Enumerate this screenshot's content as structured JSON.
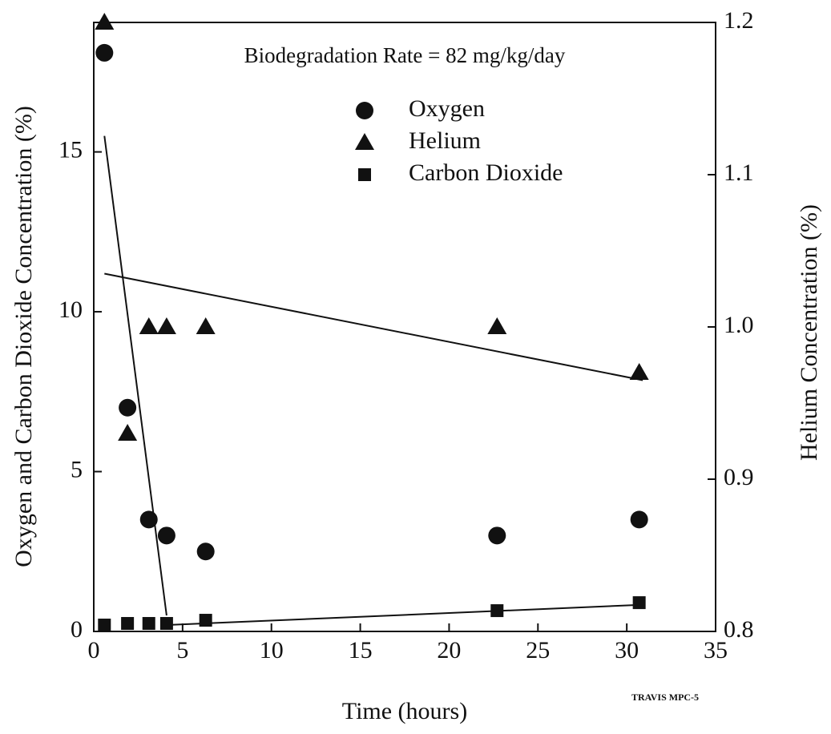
{
  "chart_data": {
    "type": "scatter",
    "annotations": [
      "Biodegradation Rate = 82 mg/kg/day",
      "TRAVIS MPC-5"
    ],
    "x_label": "Time (hours)",
    "y_label": "Oxygen and Carbon Dioxide Concentration (%)",
    "y2_label": "Helium Concentration (%)",
    "xlim": [
      0,
      35
    ],
    "xticks": [
      0,
      5,
      10,
      15,
      20,
      25,
      30,
      35
    ],
    "ylim": [
      0,
      19.05
    ],
    "yticks": [
      0,
      5,
      10,
      15
    ],
    "y2lim": [
      0.8,
      1.2
    ],
    "y2ticks": [
      0.8,
      0.9,
      {
        "value": 1,
        "label": "1.0"
      },
      1.1,
      1.2
    ],
    "series": [
      {
        "name": "Oxygen",
        "color": "#111111",
        "marker": "circle",
        "x": [
          0.6,
          1.9,
          3.1,
          4.1,
          6.3,
          22.7,
          30.7
        ],
        "values": [
          18.1,
          7.0,
          3.5,
          3.0,
          2.5,
          3.0,
          3.5
        ]
      },
      {
        "name": "Helium",
        "color": "#111111",
        "marker": "triangle",
        "axis": "y2",
        "x": [
          0.6,
          1.9,
          3.1,
          4.1,
          6.3,
          22.7,
          30.7
        ],
        "values": [
          1.2,
          0.93,
          1.0,
          1.0,
          1.0,
          1.0,
          0.97
        ]
      },
      {
        "name": "Carbon Dioxide",
        "color": "#111111",
        "marker": "square",
        "x": [
          0.6,
          1.9,
          3.1,
          4.1,
          6.3,
          22.7,
          30.7
        ],
        "values": [
          0.2,
          0.25,
          0.25,
          0.25,
          0.35,
          0.65,
          0.9
        ]
      }
    ],
    "fit_lines": [
      {
        "x": [
          0.6,
          4.1
        ],
        "values": [
          15.5,
          0.5
        ]
      },
      {
        "axis": "y2",
        "x": [
          0.6,
          30.9
        ],
        "values": [
          1.035,
          0.965
        ]
      },
      {
        "x": [
          4.1,
          30.7
        ],
        "values": [
          0.2,
          0.83
        ]
      }
    ]
  }
}
